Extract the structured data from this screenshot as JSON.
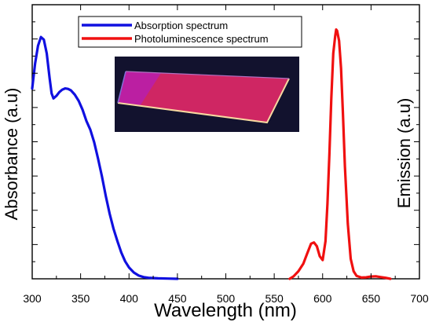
{
  "chart_data": {
    "type": "line",
    "xlabel": "Wavelength (nm)",
    "ylabel_left": "Absorbance (a.u)",
    "ylabel_right": "Emission (a.u)",
    "xlim": [
      300,
      700
    ],
    "x_ticks": [
      "300",
      "350",
      "400",
      "450",
      "500",
      "550",
      "600",
      "650",
      "700"
    ],
    "ylim": [
      0,
      1
    ],
    "grid": false,
    "legend_position": "top-center",
    "inset_photo": "glowing-pink-film-on-substrate",
    "series": [
      {
        "name": "Absorption spectrum",
        "color": "#1010e0",
        "x": [
          300,
          303,
          306,
          309,
          312,
          315,
          318,
          320,
          322,
          325,
          328,
          331,
          334,
          337,
          340,
          344,
          348,
          352,
          356,
          360,
          364,
          368,
          372,
          376,
          380,
          384,
          388,
          392,
          396,
          400,
          405,
          410,
          415,
          420,
          430,
          440,
          450
        ],
        "y": [
          0.76,
          0.86,
          0.93,
          0.965,
          0.955,
          0.9,
          0.8,
          0.74,
          0.72,
          0.73,
          0.745,
          0.755,
          0.76,
          0.758,
          0.752,
          0.735,
          0.71,
          0.675,
          0.63,
          0.595,
          0.545,
          0.48,
          0.41,
          0.33,
          0.26,
          0.2,
          0.15,
          0.105,
          0.07,
          0.045,
          0.025,
          0.013,
          0.007,
          0.004,
          0.002,
          0.001,
          0.0
        ]
      },
      {
        "name": "Photoluminescence spectrum",
        "color": "#f01010",
        "x": [
          566,
          570,
          575,
          580,
          584,
          588,
          591,
          594,
          597,
          600,
          603,
          605,
          607,
          609,
          611,
          613,
          614,
          615,
          617,
          619,
          621,
          623,
          626,
          629,
          632,
          635,
          640,
          645,
          650,
          655,
          660,
          665,
          670
        ],
        "y": [
          0.0,
          0.01,
          0.03,
          0.06,
          0.1,
          0.14,
          0.145,
          0.13,
          0.09,
          0.075,
          0.15,
          0.3,
          0.5,
          0.72,
          0.9,
          0.97,
          0.995,
          0.99,
          0.95,
          0.84,
          0.66,
          0.45,
          0.22,
          0.08,
          0.03,
          0.012,
          0.005,
          0.006,
          0.009,
          0.01,
          0.007,
          0.004,
          0.0
        ]
      }
    ]
  }
}
